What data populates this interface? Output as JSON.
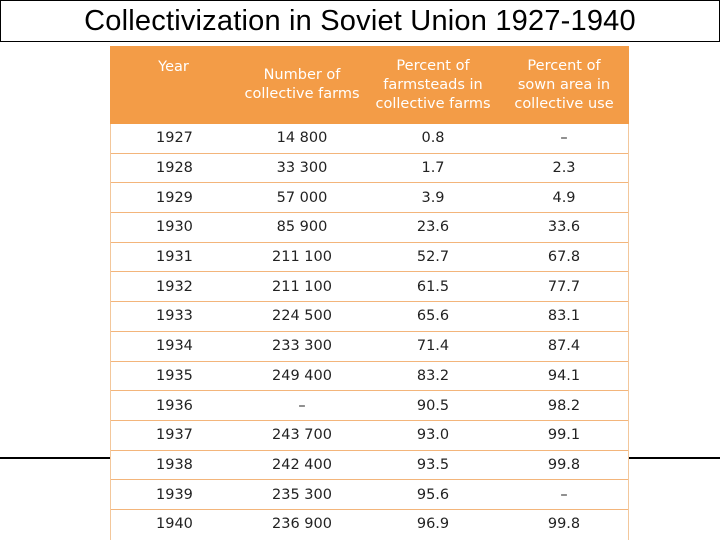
{
  "title": "Collectivization in Soviet Union 1927-1940",
  "colors": {
    "header_bg": "#f39c47",
    "row_rule": "#f3b57b"
  },
  "table": {
    "headers": [
      [
        "Year"
      ],
      [
        "Number of",
        "collective farms"
      ],
      [
        "Percent of",
        "farmsteads in",
        "collective farms"
      ],
      [
        "Percent of",
        "sown area in",
        "collective use"
      ]
    ],
    "rows": [
      [
        "1927",
        "14 800",
        "0.8",
        "–"
      ],
      [
        "1928",
        "33 300",
        "1.7",
        "2.3"
      ],
      [
        "1929",
        "57 000",
        "3.9",
        "4.9"
      ],
      [
        "1930",
        "85 900",
        "23.6",
        "33.6"
      ],
      [
        "1931",
        "211 100",
        "52.7",
        "67.8"
      ],
      [
        "1932",
        "211 100",
        "61.5",
        "77.7"
      ],
      [
        "1933",
        "224 500",
        "65.6",
        "83.1"
      ],
      [
        "1934",
        "233 300",
        "71.4",
        "87.4"
      ],
      [
        "1935",
        "249 400",
        "83.2",
        "94.1"
      ],
      [
        "1936",
        "–",
        "90.5",
        "98.2"
      ],
      [
        "1937",
        "243 700",
        "93.0",
        "99.1"
      ],
      [
        "1938",
        "242 400",
        "93.5",
        "99.8"
      ],
      [
        "1939",
        "235 300",
        "95.6",
        "–"
      ],
      [
        "1940",
        "236 900",
        "96.9",
        "99.8"
      ]
    ]
  }
}
